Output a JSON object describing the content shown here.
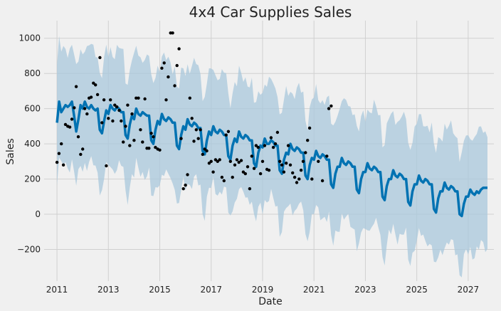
{
  "chart_data": {
    "type": "line",
    "title": "4x4 Car Supplies Sales",
    "xlabel": "Date",
    "ylabel": "Sales",
    "xlim": [
      2010.5,
      2028.0
    ],
    "ylim": [
      -380,
      1100
    ],
    "x_ticks": [
      2011,
      2013,
      2015,
      2017,
      2019,
      2021,
      2023,
      2025,
      2027
    ],
    "x_tick_labels": [
      "2011",
      "2013",
      "2015",
      "2017",
      "2019",
      "2021",
      "2023",
      "2025",
      "2027"
    ],
    "y_ticks": [
      -200,
      0,
      200,
      400,
      600,
      800,
      1000
    ],
    "y_tick_labels": [
      "−200",
      "0",
      "200",
      "400",
      "600",
      "800",
      "1000"
    ],
    "grid": true,
    "colors": {
      "background": "#f0f0f0",
      "grid": "#d0d0d0",
      "forecast_line": "#0072b2",
      "interval_fill": "#a9c8dc",
      "observed_points": "#000000"
    },
    "forecast": {
      "start": 2011.0,
      "step_years": 0.0833333,
      "values": [
        520,
        640,
        580,
        600,
        620,
        610,
        620,
        640,
        560,
        470,
        540,
        620,
        600,
        640,
        610,
        600,
        620,
        600,
        590,
        600,
        480,
        460,
        530,
        590,
        570,
        620,
        600,
        590,
        610,
        600,
        580,
        580,
        450,
        430,
        510,
        560,
        540,
        600,
        570,
        560,
        580,
        570,
        560,
        560,
        420,
        400,
        480,
        530,
        510,
        570,
        540,
        530,
        550,
        540,
        520,
        520,
        390,
        370,
        450,
        500,
        480,
        540,
        510,
        500,
        520,
        510,
        490,
        490,
        360,
        340,
        420,
        470,
        450,
        500,
        470,
        460,
        480,
        470,
        450,
        450,
        330,
        310,
        390,
        430,
        410,
        470,
        440,
        430,
        450,
        440,
        420,
        420,
        290,
        270,
        350,
        390,
        380,
        430,
        400,
        400,
        420,
        410,
        390,
        390,
        250,
        230,
        310,
        350,
        340,
        400,
        370,
        360,
        380,
        370,
        350,
        350,
        220,
        200,
        280,
        320,
        310,
        360,
        330,
        320,
        340,
        330,
        310,
        310,
        170,
        150,
        230,
        270,
        270,
        320,
        290,
        280,
        300,
        290,
        270,
        270,
        140,
        120,
        200,
        240,
        240,
        290,
        260,
        250,
        270,
        260,
        240,
        240,
        100,
        80,
        160,
        200,
        200,
        250,
        220,
        210,
        230,
        220,
        200,
        200,
        70,
        50,
        130,
        170,
        170,
        220,
        190,
        180,
        200,
        190,
        170,
        170,
        30,
        10,
        90,
        130,
        130,
        180,
        150,
        140,
        160,
        150,
        130,
        130,
        0,
        -10,
        60,
        100,
        100,
        140,
        120,
        110,
        130,
        120,
        140,
        150,
        150,
        150
      ]
    },
    "interval": {
      "lower_offset": -330,
      "upper_offset": 330
    },
    "observed": [
      [
        2011.0,
        295
      ],
      [
        2011.08,
        345
      ],
      [
        2011.17,
        400
      ],
      [
        2011.25,
        280
      ],
      [
        2011.33,
        510
      ],
      [
        2011.42,
        500
      ],
      [
        2011.5,
        495
      ],
      [
        2011.58,
        540
      ],
      [
        2011.67,
        605
      ],
      [
        2011.75,
        725
      ],
      [
        2011.83,
        440
      ],
      [
        2011.92,
        340
      ],
      [
        2012.0,
        370
      ],
      [
        2012.08,
        600
      ],
      [
        2012.17,
        570
      ],
      [
        2012.25,
        660
      ],
      [
        2012.33,
        665
      ],
      [
        2012.42,
        745
      ],
      [
        2012.5,
        735
      ],
      [
        2012.58,
        680
      ],
      [
        2012.67,
        890
      ],
      [
        2012.75,
        520
      ],
      [
        2012.83,
        650
      ],
      [
        2012.92,
        275
      ],
      [
        2013.0,
        545
      ],
      [
        2013.08,
        650
      ],
      [
        2013.17,
        530
      ],
      [
        2013.25,
        620
      ],
      [
        2013.33,
        610
      ],
      [
        2013.42,
        590
      ],
      [
        2013.5,
        530
      ],
      [
        2013.58,
        410
      ],
      [
        2013.67,
        500
      ],
      [
        2013.75,
        620
      ],
      [
        2013.83,
        390
      ],
      [
        2013.92,
        570
      ],
      [
        2014.0,
        420
      ],
      [
        2014.08,
        660
      ],
      [
        2014.17,
        660
      ],
      [
        2014.25,
        480
      ],
      [
        2014.33,
        410
      ],
      [
        2014.42,
        655
      ],
      [
        2014.5,
        375
      ],
      [
        2014.58,
        375
      ],
      [
        2014.67,
        460
      ],
      [
        2014.75,
        440
      ],
      [
        2014.83,
        380
      ],
      [
        2014.92,
        370
      ],
      [
        2015.0,
        365
      ],
      [
        2015.08,
        830
      ],
      [
        2015.17,
        860
      ],
      [
        2015.25,
        650
      ],
      [
        2015.33,
        780
      ],
      [
        2015.42,
        1030
      ],
      [
        2015.5,
        1030
      ],
      [
        2015.58,
        730
      ],
      [
        2015.67,
        845
      ],
      [
        2015.75,
        940
      ],
      [
        2015.83,
        430
      ],
      [
        2015.92,
        145
      ],
      [
        2016.0,
        165
      ],
      [
        2016.08,
        225
      ],
      [
        2016.17,
        660
      ],
      [
        2016.25,
        545
      ],
      [
        2016.33,
        415
      ],
      [
        2016.42,
        480
      ],
      [
        2016.5,
        430
      ],
      [
        2016.58,
        480
      ],
      [
        2016.67,
        340
      ],
      [
        2016.75,
        370
      ],
      [
        2016.83,
        360
      ],
      [
        2016.92,
        290
      ],
      [
        2017.0,
        300
      ],
      [
        2017.08,
        240
      ],
      [
        2017.17,
        310
      ],
      [
        2017.25,
        300
      ],
      [
        2017.33,
        310
      ],
      [
        2017.42,
        210
      ],
      [
        2017.5,
        190
      ],
      [
        2017.58,
        450
      ],
      [
        2017.67,
        470
      ],
      [
        2017.75,
        300
      ],
      [
        2017.83,
        210
      ],
      [
        2017.92,
        280
      ],
      [
        2018.0,
        310
      ],
      [
        2018.08,
        295
      ],
      [
        2018.17,
        305
      ],
      [
        2018.25,
        240
      ],
      [
        2018.33,
        230
      ],
      [
        2018.42,
        270
      ],
      [
        2018.5,
        145
      ],
      [
        2018.58,
        330
      ],
      [
        2018.67,
        260
      ],
      [
        2018.75,
        390
      ],
      [
        2018.83,
        380
      ],
      [
        2018.92,
        230
      ],
      [
        2019.0,
        300
      ],
      [
        2019.08,
        390
      ],
      [
        2019.17,
        255
      ],
      [
        2019.25,
        250
      ],
      [
        2019.33,
        435
      ],
      [
        2019.42,
        380
      ],
      [
        2019.5,
        400
      ],
      [
        2019.58,
        465
      ],
      [
        2019.67,
        300
      ],
      [
        2019.75,
        280
      ],
      [
        2019.83,
        240
      ],
      [
        2019.92,
        290
      ],
      [
        2020.0,
        390
      ],
      [
        2020.08,
        280
      ],
      [
        2020.17,
        235
      ],
      [
        2020.25,
        210
      ],
      [
        2020.33,
        180
      ],
      [
        2020.42,
        200
      ],
      [
        2020.5,
        250
      ],
      [
        2020.58,
        300
      ],
      [
        2020.67,
        350
      ],
      [
        2020.75,
        420
      ],
      [
        2020.83,
        490
      ],
      [
        2020.92,
        200
      ],
      [
        2021.17,
        300
      ],
      [
        2021.33,
        190
      ],
      [
        2021.5,
        330
      ],
      [
        2021.58,
        600
      ],
      [
        2021.67,
        615
      ]
    ]
  }
}
